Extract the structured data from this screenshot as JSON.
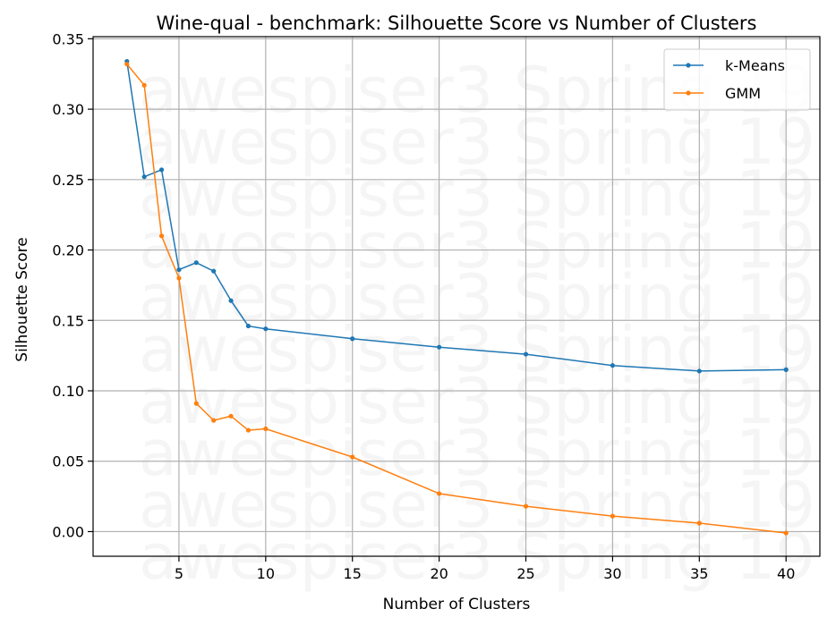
{
  "chart_data": {
    "type": "line",
    "title": "Wine-qual - benchmark: Silhouette Score vs Number of Clusters",
    "xlabel": "Number of Clusters",
    "ylabel": "Silhouette Score",
    "xlim": [
      0.05,
      41.95
    ],
    "ylim": [
      -0.0175,
      0.3515
    ],
    "xticks": [
      5,
      10,
      15,
      20,
      25,
      30,
      35,
      40
    ],
    "xtick_labels": [
      "5",
      "10",
      "15",
      "20",
      "25",
      "30",
      "35",
      "40"
    ],
    "yticks": [
      0.0,
      0.05,
      0.1,
      0.15,
      0.2,
      0.25,
      0.3,
      0.35
    ],
    "ytick_labels": [
      "0.00",
      "0.05",
      "0.10",
      "0.15",
      "0.20",
      "0.25",
      "0.30",
      "0.35"
    ],
    "grid": true,
    "legend_position": "top-right",
    "watermark": "awespiser3 Spring 19",
    "series": [
      {
        "name": "k-Means",
        "color": "#1f77b4",
        "x": [
          2,
          3,
          4,
          5,
          6,
          7,
          8,
          9,
          10,
          15,
          20,
          25,
          30,
          35,
          40
        ],
        "y": [
          0.334,
          0.252,
          0.257,
          0.186,
          0.191,
          0.185,
          0.164,
          0.146,
          0.144,
          0.137,
          0.131,
          0.126,
          0.118,
          0.114,
          0.115
        ]
      },
      {
        "name": "GMM",
        "color": "#ff7f0e",
        "x": [
          2,
          3,
          4,
          5,
          6,
          7,
          8,
          9,
          10,
          15,
          20,
          25,
          30,
          35,
          40
        ],
        "y": [
          0.332,
          0.317,
          0.21,
          0.18,
          0.091,
          0.079,
          0.082,
          0.072,
          0.073,
          0.053,
          0.027,
          0.018,
          0.011,
          0.006,
          -0.001
        ]
      }
    ]
  }
}
